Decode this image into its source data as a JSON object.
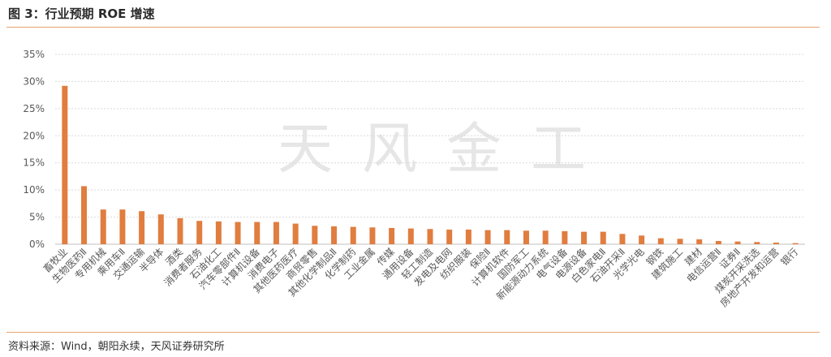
{
  "header": {
    "title": "图 3：行业预期 ROE 增速"
  },
  "footer": {
    "source": "资料来源：Wind，朝阳永续，天风证券研究所"
  },
  "watermark": {
    "text": "天风金工"
  },
  "colors": {
    "bar": "#e07d3f",
    "rule": "#e8a36f",
    "grid": "#d9d9d9",
    "text": "#595959"
  },
  "chart_data": {
    "type": "bar",
    "title": "",
    "xlabel": "",
    "ylabel": "",
    "ylim": [
      0,
      35
    ],
    "yticks": [
      "0%",
      "5%",
      "10%",
      "15%",
      "20%",
      "25%",
      "30%",
      "35%"
    ],
    "grid": true,
    "categories": [
      "畜牧业",
      "生物医药Ⅱ",
      "专用机械",
      "乘用车Ⅱ",
      "交通运输",
      "半导体",
      "酒类",
      "消费者服务",
      "石油化工",
      "汽车零部件Ⅱ",
      "计算机设备",
      "消费电子",
      "其他医药医疗",
      "商贸零售",
      "其他化学制品Ⅱ",
      "化学制药",
      "工业金属",
      "传媒",
      "通用设备",
      "轻工制造",
      "发电及电网",
      "纺织服装",
      "保险Ⅱ",
      "计算机软件",
      "国防军工",
      "新能源动力系统",
      "电气设备",
      "电源设备",
      "白色家电Ⅱ",
      "石油开采Ⅱ",
      "光学光电",
      "钢铁",
      "建筑施工",
      "建材",
      "电信运营Ⅱ",
      "证券Ⅱ",
      "煤炭开采洗选",
      "房地产开发和运营",
      "银行"
    ],
    "values": [
      29.2,
      10.7,
      6.4,
      6.4,
      6.1,
      5.5,
      4.8,
      4.3,
      4.2,
      4.1,
      4.1,
      4.1,
      3.8,
      3.4,
      3.3,
      3.2,
      3.1,
      3.0,
      2.9,
      2.8,
      2.7,
      2.7,
      2.6,
      2.6,
      2.5,
      2.5,
      2.4,
      2.3,
      2.3,
      1.9,
      1.6,
      1.1,
      1.0,
      0.9,
      0.6,
      0.5,
      0.4,
      0.3,
      0.2
    ]
  }
}
